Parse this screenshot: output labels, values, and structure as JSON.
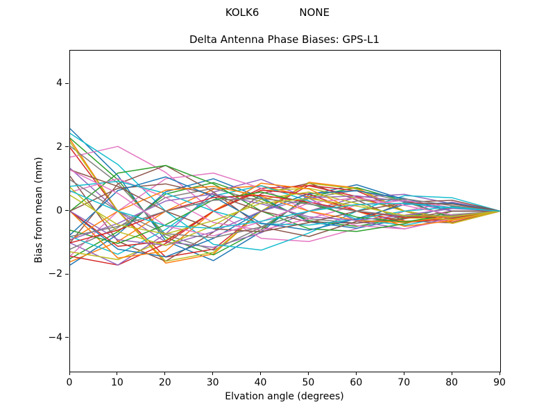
{
  "figure": {
    "suptitle": {
      "station": "KOLK6",
      "mode": "NONE"
    }
  },
  "chart_data": {
    "type": "line",
    "suptitle": "KOLK6          NONE",
    "title": "Delta Antenna Phase Biases: GPS-L1",
    "xlabel": "Elvation angle (degrees)",
    "ylabel": "Bias from mean (mm)",
    "xlim": [
      0,
      90
    ],
    "ylim": [
      -5.06,
      5.06
    ],
    "xticks": [
      0,
      10,
      20,
      30,
      40,
      50,
      60,
      70,
      80,
      90
    ],
    "yticks": [
      -4,
      -2,
      0,
      2,
      4
    ],
    "grid": false,
    "legend_position": "none",
    "line_width": 1.5,
    "x": [
      0,
      10,
      20,
      30,
      40,
      50,
      60,
      70,
      80,
      90
    ],
    "series": [
      {
        "name": "line-01",
        "color": "#1f77b4",
        "values": [
          2.6,
          1.12,
          -0.94,
          -1.56,
          -0.65,
          0.52,
          0.83,
          0.36,
          -0.23,
          0
        ]
      },
      {
        "name": "line-02",
        "color": "#ff7f0e",
        "values": [
          2.26,
          0,
          -1.64,
          -1.35,
          0,
          0.91,
          0.73,
          0,
          -0.39,
          0
        ]
      },
      {
        "name": "line-03",
        "color": "#2ca02c",
        "values": [
          2.3,
          0.99,
          -0.83,
          -1.38,
          -0.58,
          0.46,
          0.74,
          0.32,
          -0.21,
          0
        ]
      },
      {
        "name": "line-04",
        "color": "#d62728",
        "values": [
          2.0,
          0,
          -1.45,
          -1.2,
          0,
          0.81,
          0.64,
          0,
          -0.35,
          0
        ]
      },
      {
        "name": "line-05",
        "color": "#9467bd",
        "values": [
          1.35,
          0,
          -0.97,
          -1.14,
          -0.68,
          0,
          0.44,
          0.53,
          0.23,
          0
        ]
      },
      {
        "name": "line-06",
        "color": "#8c564b",
        "values": [
          1.1,
          -0.95,
          -1.58,
          -0.66,
          0.55,
          0.88,
          0.35,
          -0.31,
          -0.37,
          0
        ]
      },
      {
        "name": "line-07",
        "color": "#e377c2",
        "values": [
          1.7,
          2.04,
          1.22,
          0,
          -0.86,
          -0.96,
          -0.55,
          0,
          0.29,
          0
        ]
      },
      {
        "name": "line-08",
        "color": "#7f7f7f",
        "values": [
          2.05,
          0.88,
          -0.74,
          -1.23,
          -0.51,
          0.41,
          0.66,
          0.29,
          -0.18,
          0
        ]
      },
      {
        "name": "line-09",
        "color": "#bcbd22",
        "values": [
          2.18,
          0,
          -1.58,
          -1.3,
          0,
          0.88,
          0.7,
          0,
          -0.38,
          0
        ]
      },
      {
        "name": "line-10",
        "color": "#17becf",
        "values": [
          2.45,
          1.47,
          0,
          -1.05,
          -1.23,
          -0.69,
          0,
          0.49,
          0.42,
          0
        ]
      },
      {
        "name": "line-11",
        "color": "#1f77b4",
        "values": [
          -1.7,
          -0.73,
          0.61,
          1.02,
          0.43,
          -0.34,
          -0.54,
          -0.24,
          0.15,
          0
        ]
      },
      {
        "name": "line-12",
        "color": "#ff7f0e",
        "values": [
          -1.6,
          -0.96,
          0,
          0.69,
          0.8,
          0.45,
          0,
          -0.32,
          -0.27,
          0
        ]
      },
      {
        "name": "line-13",
        "color": "#2ca02c",
        "values": [
          -1.5,
          -0.65,
          0.54,
          0.9,
          0.38,
          -0.3,
          -0.48,
          -0.21,
          0.14,
          0
        ]
      },
      {
        "name": "line-14",
        "color": "#d62728",
        "values": [
          -1.42,
          -1.7,
          -1.02,
          0,
          0.72,
          0.8,
          0.46,
          0,
          -0.24,
          0
        ]
      },
      {
        "name": "line-15",
        "color": "#9467bd",
        "values": [
          -1.0,
          -1.7,
          -0.72,
          0.6,
          1.0,
          0.4,
          -0.32,
          -0.56,
          -0.18,
          0
        ]
      },
      {
        "name": "line-16",
        "color": "#8c564b",
        "values": [
          -1.0,
          0.86,
          1.44,
          0.6,
          -0.5,
          -0.8,
          -0.32,
          0.28,
          0.34,
          0
        ]
      },
      {
        "name": "line-17",
        "color": "#e377c2",
        "values": [
          -1.42,
          0,
          1.02,
          1.2,
          0.72,
          0,
          -0.46,
          -0.56,
          -0.24,
          0
        ]
      },
      {
        "name": "line-18",
        "color": "#7f7f7f",
        "values": [
          -1.2,
          -0.52,
          0.43,
          0.72,
          0.3,
          -0.24,
          -0.38,
          -0.17,
          0.11,
          0
        ]
      },
      {
        "name": "line-19",
        "color": "#bcbd22",
        "values": [
          -1.28,
          -1.53,
          -0.92,
          0,
          0.65,
          0.72,
          0.41,
          0,
          -0.22,
          0
        ]
      },
      {
        "name": "line-20",
        "color": "#17becf",
        "values": [
          -0.8,
          -1.36,
          -0.58,
          0.48,
          0.8,
          0.32,
          -0.26,
          -0.45,
          -0.14,
          0
        ]
      },
      {
        "name": "line-21",
        "color": "#1f77b4",
        "values": [
          0,
          -1.2,
          -1.44,
          -0.86,
          0,
          0.56,
          0.64,
          0.4,
          0,
          0
        ]
      },
      {
        "name": "line-22",
        "color": "#ff7f0e",
        "values": [
          0,
          -1.48,
          -1.26,
          0,
          0.88,
          0.7,
          0,
          -0.48,
          -0.3,
          0
        ]
      },
      {
        "name": "line-23",
        "color": "#2ca02c",
        "values": [
          0,
          1.2,
          1.44,
          0.86,
          0,
          -0.56,
          -0.64,
          -0.4,
          0,
          0
        ]
      },
      {
        "name": "line-24",
        "color": "#d62728",
        "values": [
          0,
          -1.11,
          -0.95,
          0,
          0.66,
          0.53,
          0,
          -0.36,
          -0.23,
          0
        ]
      },
      {
        "name": "line-25",
        "color": "#9467bd",
        "values": [
          0,
          -0.9,
          -1.08,
          -0.65,
          0,
          0.42,
          0.48,
          0.3,
          0,
          0
        ]
      },
      {
        "name": "line-26",
        "color": "#8c564b",
        "values": [
          0,
          0.72,
          0.86,
          0.52,
          0,
          -0.34,
          -0.38,
          -0.24,
          0,
          0
        ]
      },
      {
        "name": "line-27",
        "color": "#e377c2",
        "values": [
          0.6,
          1.02,
          0.43,
          -0.36,
          -0.6,
          -0.24,
          0.19,
          0.34,
          0.11,
          0
        ]
      },
      {
        "name": "line-28",
        "color": "#7f7f7f",
        "values": [
          0.99,
          0,
          -0.71,
          -0.84,
          -0.5,
          0,
          0.32,
          0.39,
          0.17,
          0
        ]
      },
      {
        "name": "line-29",
        "color": "#bcbd22",
        "values": [
          0.75,
          -0.65,
          -1.08,
          -0.45,
          0.38,
          0.6,
          0.24,
          -0.21,
          -0.26,
          0
        ]
      },
      {
        "name": "line-30",
        "color": "#17becf",
        "values": [
          0.78,
          0.94,
          0.56,
          0,
          -0.4,
          -0.44,
          -0.25,
          0,
          0.13,
          0
        ]
      },
      {
        "name": "line-31",
        "color": "#1f77b4",
        "values": [
          -0.75,
          0.65,
          1.08,
          0.45,
          -0.38,
          -0.6,
          -0.24,
          0.21,
          0.26,
          0
        ]
      },
      {
        "name": "line-32",
        "color": "#ff7f0e",
        "values": [
          -0.92,
          0,
          0.66,
          0.78,
          0.47,
          0,
          -0.3,
          -0.36,
          -0.16,
          0
        ]
      },
      {
        "name": "line-33",
        "color": "#2ca02c",
        "values": [
          -0.6,
          -1.02,
          -0.43,
          0.36,
          0.6,
          0.24,
          -0.19,
          -0.34,
          -0.11,
          0
        ]
      },
      {
        "name": "line-34",
        "color": "#d62728",
        "values": [
          -1.0,
          -0.6,
          0,
          0.43,
          0.5,
          0.28,
          0,
          -0.2,
          -0.17,
          0
        ]
      },
      {
        "name": "line-35",
        "color": "#9467bd",
        "values": [
          -0.9,
          -0.39,
          0.32,
          0.54,
          0.23,
          -0.18,
          -0.29,
          -0.13,
          0.08,
          0
        ]
      },
      {
        "name": "line-36",
        "color": "#8c564b",
        "values": [
          1.3,
          0.78,
          0,
          -0.56,
          -0.65,
          -0.36,
          0,
          0.26,
          0.22,
          0
        ]
      },
      {
        "name": "line-37",
        "color": "#e377c2",
        "values": [
          1.3,
          0.56,
          -0.47,
          -0.78,
          -0.33,
          0.26,
          0.42,
          0.18,
          -0.12,
          0
        ]
      },
      {
        "name": "line-38",
        "color": "#7f7f7f",
        "values": [
          -0.8,
          -0.48,
          0,
          0.34,
          0.4,
          0.22,
          0,
          -0.16,
          -0.14,
          0
        ]
      },
      {
        "name": "line-39",
        "color": "#bcbd22",
        "values": [
          0.5,
          -0.43,
          -0.72,
          -0.3,
          0.25,
          0.4,
          0.16,
          -0.14,
          -0.17,
          0
        ]
      },
      {
        "name": "line-40",
        "color": "#17becf",
        "values": [
          0.64,
          0,
          -0.46,
          -0.54,
          -0.32,
          0,
          0.21,
          0.25,
          0.11,
          0
        ]
      }
    ]
  }
}
